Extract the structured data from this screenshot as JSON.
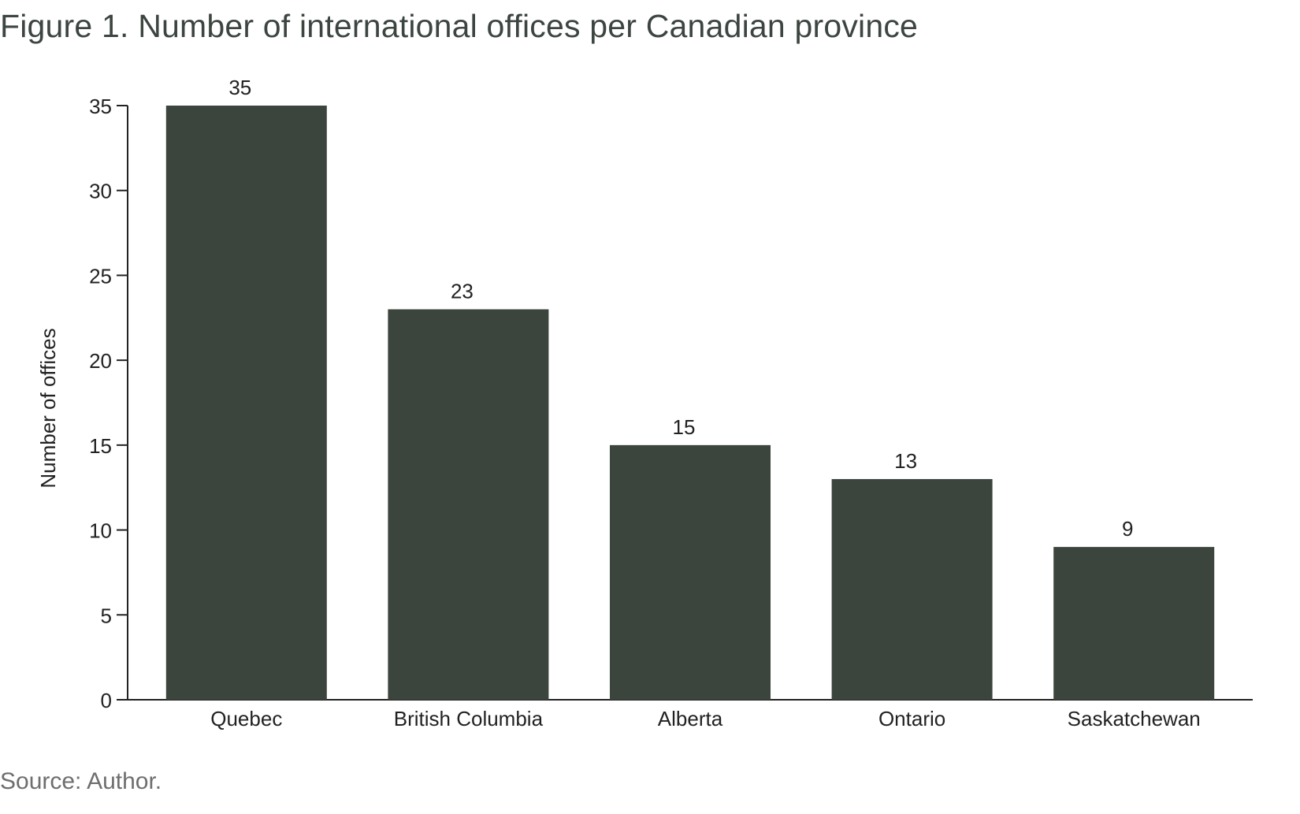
{
  "title": "Figure 1. Number of international offices per Canadian province",
  "source": "Source: Author.",
  "colors": {
    "bar": "#3c453d",
    "axis": "#222222",
    "title": "#3c4540"
  },
  "chart_data": {
    "type": "bar",
    "categories": [
      "Quebec",
      "British Columbia",
      "Alberta",
      "Ontario",
      "Saskatchewan"
    ],
    "values": [
      35,
      23,
      15,
      13,
      9
    ],
    "data_labels": [
      "35",
      "23",
      "15",
      "13",
      "9"
    ],
    "title": "Figure 1. Number of international offices per Canadian province",
    "xlabel": "",
    "ylabel": "Number of offices",
    "ylim": [
      0,
      35
    ],
    "yticks": [
      0,
      5,
      10,
      15,
      20,
      25,
      30,
      35
    ],
    "grid": false,
    "legend": "none"
  }
}
